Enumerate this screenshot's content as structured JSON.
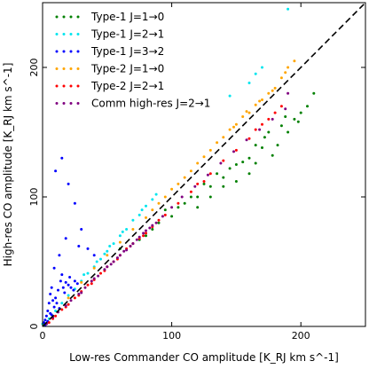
{
  "chart_data": {
    "type": "scatter",
    "xlabel": "Low-res Commander CO amplitude [K_RJ km s^-1]",
    "ylabel": "High-res CO amplitude [K_RJ km s^-1]",
    "xlim": [
      0,
      250
    ],
    "ylim": [
      0,
      250
    ],
    "x_ticks": [
      0,
      100,
      200
    ],
    "y_ticks": [
      0,
      100,
      200
    ],
    "x_tick_labels": [
      "0",
      "100",
      "200"
    ],
    "y_tick_labels": [
      "0",
      "100",
      "200"
    ],
    "grid": false,
    "legend_position": "top-left",
    "reference_line": {
      "style": "dashed",
      "color": "#000000",
      "slope": 1,
      "intercept": 0
    },
    "series": [
      {
        "name": "Type-1 J=1→0",
        "color": "#008000",
        "points": [
          [
            60,
            60
          ],
          [
            70,
            64
          ],
          [
            80,
            70
          ],
          [
            90,
            80
          ],
          [
            100,
            85
          ],
          [
            110,
            95
          ],
          [
            120,
            100
          ],
          [
            130,
            108
          ],
          [
            140,
            115
          ],
          [
            150,
            125
          ],
          [
            160,
            130
          ],
          [
            170,
            138
          ],
          [
            175,
            150
          ],
          [
            185,
            155
          ],
          [
            195,
            160
          ],
          [
            205,
            170
          ],
          [
            210,
            180
          ],
          [
            95,
            90
          ],
          [
            105,
            92
          ],
          [
            115,
            100
          ],
          [
            125,
            110
          ],
          [
            135,
            118
          ],
          [
            145,
            122
          ],
          [
            155,
            127
          ],
          [
            165,
            140
          ],
          [
            172,
            146
          ],
          [
            182,
            140
          ],
          [
            190,
            150
          ],
          [
            200,
            165
          ],
          [
            140,
            108
          ],
          [
            150,
            112
          ],
          [
            160,
            118
          ],
          [
            120,
            92
          ],
          [
            130,
            100
          ],
          [
            165,
            126
          ],
          [
            178,
            132
          ],
          [
            188,
            162
          ],
          [
            198,
            158
          ],
          [
            85,
            75
          ],
          [
            75,
            67
          ]
        ]
      },
      {
        "name": "Type-1 J=2→1",
        "color": "#00e5ee",
        "points": [
          [
            0,
            2
          ],
          [
            5,
            6
          ],
          [
            10,
            12
          ],
          [
            15,
            18
          ],
          [
            20,
            24
          ],
          [
            25,
            29
          ],
          [
            30,
            35
          ],
          [
            35,
            41
          ],
          [
            40,
            46
          ],
          [
            45,
            52
          ],
          [
            50,
            58
          ],
          [
            55,
            64
          ],
          [
            60,
            70
          ],
          [
            65,
            75
          ],
          [
            70,
            82
          ],
          [
            75,
            86
          ],
          [
            80,
            93
          ],
          [
            85,
            98
          ],
          [
            88,
            102
          ],
          [
            145,
            178
          ],
          [
            160,
            188
          ],
          [
            170,
            200
          ],
          [
            165,
            195
          ],
          [
            190,
            245
          ],
          [
            32,
            40
          ],
          [
            48,
            56
          ],
          [
            62,
            73
          ],
          [
            77,
            90
          ],
          [
            52,
            62
          ],
          [
            42,
            50
          ]
        ]
      },
      {
        "name": "Type-1 J=3→2",
        "color": "#0000ff",
        "points": [
          [
            1,
            3
          ],
          [
            2,
            5
          ],
          [
            3,
            8
          ],
          [
            4,
            12
          ],
          [
            5,
            18
          ],
          [
            6,
            25
          ],
          [
            7,
            30
          ],
          [
            8,
            20
          ],
          [
            9,
            15
          ],
          [
            10,
            22
          ],
          [
            12,
            28
          ],
          [
            14,
            35
          ],
          [
            15,
            40
          ],
          [
            16,
            30
          ],
          [
            18,
            34
          ],
          [
            20,
            32
          ],
          [
            22,
            30
          ],
          [
            25,
            35
          ],
          [
            10,
            120
          ],
          [
            15,
            130
          ],
          [
            20,
            110
          ],
          [
            25,
            95
          ],
          [
            30,
            75
          ],
          [
            35,
            60
          ],
          [
            40,
            55
          ],
          [
            18,
            68
          ],
          [
            28,
            62
          ],
          [
            13,
            55
          ],
          [
            9,
            45
          ],
          [
            6,
            10
          ],
          [
            3,
            2
          ],
          [
            2,
            1
          ],
          [
            11,
            18
          ],
          [
            17,
            26
          ],
          [
            21,
            38
          ],
          [
            24,
            28
          ],
          [
            27,
            33
          ],
          [
            4,
            4
          ],
          [
            7,
            9
          ],
          [
            13,
            14
          ]
        ]
      },
      {
        "name": "Type-2 J=1→0",
        "color": "#ffa500",
        "points": [
          [
            20,
            22
          ],
          [
            30,
            34
          ],
          [
            40,
            45
          ],
          [
            50,
            55
          ],
          [
            60,
            65
          ],
          [
            70,
            75
          ],
          [
            80,
            84
          ],
          [
            90,
            95
          ],
          [
            100,
            106
          ],
          [
            110,
            115
          ],
          [
            120,
            126
          ],
          [
            130,
            136
          ],
          [
            140,
            146
          ],
          [
            150,
            156
          ],
          [
            160,
            165
          ],
          [
            170,
            175
          ],
          [
            180,
            184
          ],
          [
            185,
            192
          ],
          [
            190,
            200
          ],
          [
            195,
            205
          ],
          [
            135,
            142
          ],
          [
            145,
            152
          ],
          [
            155,
            162
          ],
          [
            165,
            171
          ],
          [
            175,
            180
          ],
          [
            85,
            90
          ],
          [
            95,
            100
          ],
          [
            105,
            110
          ],
          [
            115,
            120
          ],
          [
            125,
            131
          ],
          [
            188,
            196
          ],
          [
            178,
            182
          ],
          [
            168,
            174
          ],
          [
            158,
            166
          ],
          [
            148,
            154
          ]
        ]
      },
      {
        "name": "Type-2 J=2→1",
        "color": "#ff0000",
        "points": [
          [
            5,
            3
          ],
          [
            10,
            8
          ],
          [
            15,
            13
          ],
          [
            20,
            17
          ],
          [
            25,
            22
          ],
          [
            30,
            27
          ],
          [
            35,
            32
          ],
          [
            40,
            36
          ],
          [
            45,
            41
          ],
          [
            50,
            46
          ],
          [
            55,
            50
          ],
          [
            60,
            55
          ],
          [
            65,
            60
          ],
          [
            70,
            64
          ],
          [
            75,
            68
          ],
          [
            80,
            72
          ],
          [
            85,
            77
          ],
          [
            90,
            82
          ],
          [
            120,
            110
          ],
          [
            130,
            118
          ],
          [
            140,
            128
          ],
          [
            150,
            136
          ],
          [
            160,
            145
          ],
          [
            165,
            152
          ],
          [
            170,
            156
          ],
          [
            175,
            160
          ],
          [
            180,
            165
          ],
          [
            185,
            170
          ],
          [
            28,
            24
          ],
          [
            38,
            33
          ],
          [
            48,
            43
          ],
          [
            58,
            52
          ],
          [
            68,
            62
          ],
          [
            78,
            70
          ],
          [
            18,
            15
          ],
          [
            8,
            6
          ],
          [
            95,
            86
          ],
          [
            105,
            95
          ],
          [
            115,
            104
          ],
          [
            125,
            112
          ]
        ]
      },
      {
        "name": "Comm high-res J=2→1",
        "color": "#800080",
        "points": [
          [
            3,
            2
          ],
          [
            8,
            7
          ],
          [
            12,
            11
          ],
          [
            18,
            16
          ],
          [
            22,
            20
          ],
          [
            28,
            25
          ],
          [
            33,
            30
          ],
          [
            38,
            35
          ],
          [
            43,
            39
          ],
          [
            48,
            44
          ],
          [
            53,
            48
          ],
          [
            58,
            53
          ],
          [
            63,
            58
          ],
          [
            68,
            62
          ],
          [
            73,
            67
          ],
          [
            78,
            72
          ],
          [
            83,
            76
          ],
          [
            88,
            80
          ],
          [
            93,
            85
          ],
          [
            100,
            92
          ],
          [
            108,
            100
          ],
          [
            118,
            108
          ],
          [
            128,
            117
          ],
          [
            138,
            126
          ],
          [
            148,
            135
          ],
          [
            158,
            144
          ],
          [
            168,
            152
          ],
          [
            178,
            160
          ],
          [
            188,
            168
          ],
          [
            190,
            180
          ],
          [
            30,
            26
          ],
          [
            40,
            37
          ],
          [
            50,
            46
          ],
          [
            60,
            55
          ],
          [
            70,
            64
          ],
          [
            80,
            74
          ],
          [
            55,
            50
          ],
          [
            65,
            59
          ],
          [
            75,
            69
          ],
          [
            85,
            78
          ]
        ]
      }
    ]
  }
}
